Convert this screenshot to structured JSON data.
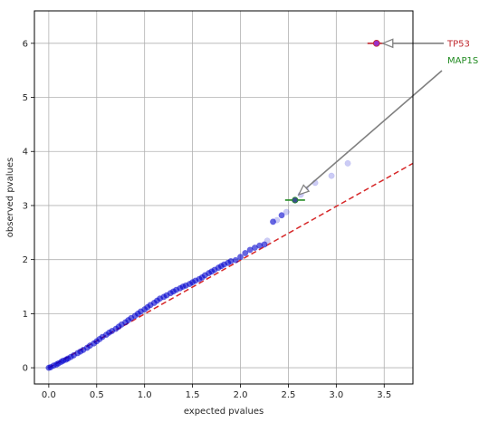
{
  "chart_data": {
    "type": "scatter",
    "xlabel": "expected pvalues",
    "ylabel": "observed pvalues",
    "xlim": [
      -0.15,
      3.8
    ],
    "ylim": [
      -0.3,
      6.6
    ],
    "x_ticks": [
      "0.0",
      "0.5",
      "1.0",
      "1.5",
      "2.0",
      "2.5",
      "3.0",
      "3.5"
    ],
    "y_ticks": [
      "0",
      "1",
      "2",
      "3",
      "4",
      "5",
      "6"
    ],
    "grid": true,
    "colors": {
      "points": "#0000cd",
      "reference_line": "#d62728",
      "arrow": "#808080",
      "tp53": "#c0272d",
      "map1s": "#228b22",
      "tp53_marker": "#9b30c8"
    },
    "reference_line": {
      "style": "dashed",
      "points": [
        [
          0,
          0
        ],
        [
          3.8,
          3.78
        ]
      ]
    },
    "series": [
      {
        "style": "solid",
        "points": [
          [
            0.0,
            0.0
          ],
          [
            0.02,
            0.01
          ],
          [
            0.05,
            0.04
          ],
          [
            0.08,
            0.06
          ],
          [
            0.1,
            0.08
          ],
          [
            0.13,
            0.11
          ],
          [
            0.15,
            0.13
          ],
          [
            0.18,
            0.15
          ],
          [
            0.2,
            0.17
          ],
          [
            0.23,
            0.2
          ],
          [
            0.26,
            0.23
          ],
          [
            0.3,
            0.27
          ],
          [
            0.33,
            0.3
          ],
          [
            0.36,
            0.33
          ],
          [
            0.4,
            0.37
          ],
          [
            0.43,
            0.41
          ],
          [
            0.47,
            0.45
          ],
          [
            0.5,
            0.49
          ],
          [
            0.53,
            0.53
          ],
          [
            0.56,
            0.57
          ],
          [
            0.6,
            0.61
          ],
          [
            0.63,
            0.65
          ],
          [
            0.66,
            0.68
          ],
          [
            0.7,
            0.72
          ],
          [
            0.73,
            0.76
          ],
          [
            0.76,
            0.8
          ],
          [
            0.8,
            0.84
          ],
          [
            0.83,
            0.88
          ],
          [
            0.86,
            0.92
          ],
          [
            0.9,
            0.96
          ],
          [
            0.93,
            1.0
          ],
          [
            0.96,
            1.04
          ],
          [
            1.0,
            1.08
          ],
          [
            1.03,
            1.12
          ],
          [
            1.06,
            1.16
          ],
          [
            1.1,
            1.2
          ],
          [
            1.13,
            1.24
          ],
          [
            1.16,
            1.28
          ],
          [
            1.2,
            1.31
          ],
          [
            1.23,
            1.34
          ],
          [
            1.27,
            1.38
          ],
          [
            1.3,
            1.41
          ],
          [
            1.33,
            1.44
          ],
          [
            1.37,
            1.47
          ],
          [
            1.4,
            1.5
          ],
          [
            1.43,
            1.52
          ],
          [
            1.47,
            1.55
          ],
          [
            1.5,
            1.58
          ],
          [
            1.53,
            1.61
          ],
          [
            1.57,
            1.64
          ],
          [
            1.6,
            1.67
          ],
          [
            1.63,
            1.71
          ],
          [
            1.67,
            1.75
          ],
          [
            1.7,
            1.78
          ],
          [
            1.73,
            1.81
          ],
          [
            1.77,
            1.85
          ],
          [
            1.8,
            1.88
          ],
          [
            1.83,
            1.91
          ],
          [
            1.87,
            1.94
          ],
          [
            1.9,
            1.97
          ],
          [
            1.95,
            1.99
          ],
          [
            2.0,
            2.05
          ],
          [
            2.05,
            2.12
          ],
          [
            2.1,
            2.18
          ],
          [
            2.15,
            2.22
          ],
          [
            2.2,
            2.26
          ],
          [
            2.25,
            2.28
          ],
          [
            2.34,
            2.7
          ],
          [
            2.43,
            2.82
          ],
          [
            2.57,
            3.1
          ],
          [
            3.42,
            6.0
          ]
        ]
      },
      {
        "style": "faded",
        "points": [
          [
            2.28,
            2.35
          ],
          [
            2.38,
            2.73
          ],
          [
            2.48,
            2.88
          ],
          [
            2.63,
            3.2
          ],
          [
            2.68,
            3.3
          ],
          [
            2.78,
            3.42
          ],
          [
            2.95,
            3.55
          ],
          [
            3.12,
            3.78
          ]
        ]
      }
    ],
    "annotations": [
      {
        "label": "TP53",
        "point": [
          3.42,
          6.0
        ],
        "text_at": [
          3.65,
          6.0
        ]
      },
      {
        "label": "MAP1S",
        "point": [
          2.57,
          3.1
        ],
        "text_at": [
          3.65,
          5.55
        ]
      }
    ]
  }
}
